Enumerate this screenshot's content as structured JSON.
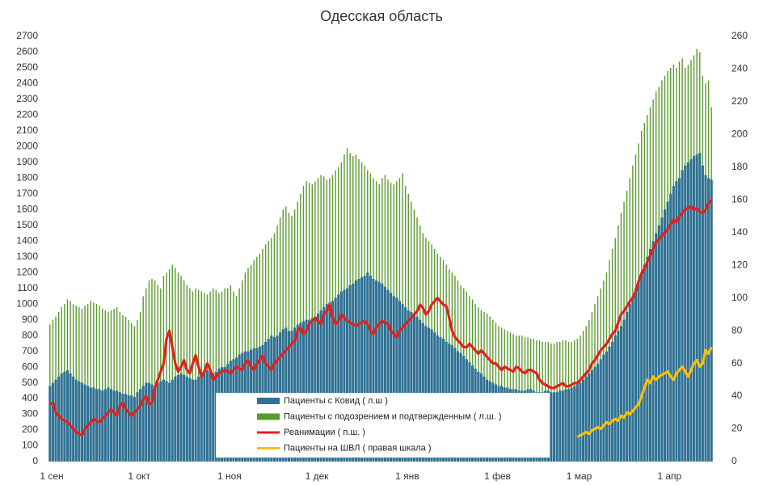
{
  "chart_data": {
    "type": "combo",
    "title": "Одесская область",
    "categories": [
      "1 сен",
      null,
      null,
      null,
      null,
      null,
      null,
      null,
      null,
      null,
      null,
      null,
      null,
      null,
      null,
      null,
      null,
      null,
      null,
      null,
      null,
      null,
      null,
      null,
      null,
      null,
      null,
      null,
      null,
      null,
      "1 окт",
      null,
      null,
      null,
      null,
      null,
      null,
      null,
      null,
      null,
      null,
      null,
      null,
      null,
      null,
      null,
      null,
      null,
      null,
      null,
      null,
      null,
      null,
      null,
      null,
      null,
      null,
      null,
      null,
      null,
      null,
      "1 ноя",
      null,
      null,
      null,
      null,
      null,
      null,
      null,
      null,
      null,
      null,
      null,
      null,
      null,
      null,
      null,
      null,
      null,
      null,
      null,
      null,
      null,
      null,
      null,
      null,
      null,
      null,
      null,
      null,
      null,
      "1 дек",
      null,
      null,
      null,
      null,
      null,
      null,
      null,
      null,
      null,
      null,
      null,
      null,
      null,
      null,
      null,
      null,
      null,
      null,
      null,
      null,
      null,
      null,
      null,
      null,
      null,
      null,
      null,
      null,
      null,
      null,
      "1 янв",
      null,
      null,
      null,
      null,
      null,
      null,
      null,
      null,
      null,
      null,
      null,
      null,
      null,
      null,
      null,
      null,
      null,
      null,
      null,
      null,
      null,
      null,
      null,
      null,
      null,
      null,
      null,
      null,
      null,
      null,
      "1 фев",
      null,
      null,
      null,
      null,
      null,
      null,
      null,
      null,
      null,
      null,
      null,
      null,
      null,
      null,
      null,
      null,
      null,
      null,
      null,
      null,
      null,
      null,
      null,
      null,
      null,
      null,
      null,
      "1 мар",
      null,
      null,
      null,
      null,
      null,
      null,
      null,
      null,
      null,
      null,
      null,
      null,
      null,
      null,
      null,
      null,
      null,
      null,
      null,
      null,
      null,
      null,
      null,
      null,
      null,
      null,
      null,
      null,
      null,
      null,
      "1 апр",
      null,
      null,
      null,
      null,
      null,
      null,
      null,
      null,
      null,
      null,
      null,
      null,
      null,
      null,
      null
    ],
    "series": [
      {
        "name": "Пациенты с подозрением и подтвержденным ( л.ш. )",
        "kind": "bar",
        "color": "#5a9a2e",
        "values": [
          870,
          900,
          920,
          950,
          980,
          1000,
          1030,
          1020,
          1000,
          990,
          980,
          970,
          990,
          1000,
          1020,
          1010,
          1000,
          990,
          970,
          960,
          950,
          960,
          970,
          980,
          950,
          930,
          920,
          900,
          880,
          860,
          900,
          950,
          1050,
          1100,
          1150,
          1160,
          1150,
          1120,
          1100,
          1180,
          1200,
          1220,
          1250,
          1230,
          1200,
          1180,
          1150,
          1120,
          1100,
          1080,
          1100,
          1090,
          1080,
          1070,
          1060,
          1080,
          1100,
          1090,
          1070,
          1080,
          1100,
          1100,
          1120,
          1080,
          1050,
          1100,
          1150,
          1200,
          1230,
          1250,
          1280,
          1300,
          1320,
          1350,
          1380,
          1400,
          1420,
          1450,
          1500,
          1550,
          1600,
          1620,
          1580,
          1560,
          1600,
          1650,
          1700,
          1750,
          1780,
          1770,
          1760,
          1780,
          1800,
          1820,
          1810,
          1790,
          1800,
          1820,
          1850,
          1870,
          1900,
          1950,
          1990,
          1960,
          1940,
          1950,
          1920,
          1900,
          1880,
          1850,
          1830,
          1800,
          1780,
          1760,
          1800,
          1820,
          1790,
          1770,
          1760,
          1780,
          1800,
          1830,
          1750,
          1700,
          1650,
          1600,
          1550,
          1500,
          1450,
          1420,
          1400,
          1380,
          1350,
          1320,
          1300,
          1280,
          1250,
          1220,
          1200,
          1180,
          1150,
          1120,
          1100,
          1080,
          1050,
          1030,
          1000,
          980,
          960,
          950,
          940,
          920,
          900,
          880,
          860,
          850,
          840,
          830,
          820,
          810,
          800,
          800,
          800,
          790,
          790,
          780,
          780,
          770,
          770,
          760,
          760,
          760,
          750,
          750,
          760,
          760,
          770,
          770,
          760,
          760,
          770,
          780,
          800,
          830,
          860,
          900,
          950,
          1000,
          1050,
          1100,
          1150,
          1200,
          1280,
          1350,
          1420,
          1500,
          1580,
          1650,
          1720,
          1800,
          1880,
          1950,
          2020,
          2100,
          2150,
          2200,
          2250,
          2300,
          2350,
          2380,
          2420,
          2450,
          2480,
          2500,
          2520,
          2500,
          2540,
          2560,
          2500,
          2520,
          2550,
          2580,
          2620,
          2600,
          2450,
          2400,
          2420,
          2250
        ]
      },
      {
        "name": "Пациенты с Ковид ( л.ш )",
        "kind": "bar",
        "color": "#2f7193",
        "values": [
          480,
          500,
          520,
          540,
          560,
          570,
          580,
          560,
          540,
          520,
          510,
          500,
          490,
          480,
          470,
          470,
          460,
          460,
          450,
          460,
          470,
          460,
          450,
          450,
          440,
          430,
          430,
          420,
          420,
          410,
          440,
          460,
          480,
          500,
          500,
          490,
          480,
          500,
          510,
          520,
          510,
          500,
          520,
          540,
          550,
          560,
          550,
          540,
          530,
          520,
          520,
          540,
          560,
          580,
          580,
          570,
          560,
          570,
          590,
          600,
          600,
          620,
          640,
          650,
          660,
          680,
          690,
          700,
          700,
          710,
          720,
          720,
          730,
          740,
          760,
          780,
          800,
          790,
          800,
          820,
          840,
          850,
          830,
          830,
          850,
          870,
          880,
          890,
          900,
          900,
          910,
          920,
          940,
          960,
          980,
          1000,
          1010,
          1020,
          1040,
          1060,
          1080,
          1090,
          1100,
          1120,
          1130,
          1150,
          1160,
          1170,
          1180,
          1200,
          1180,
          1160,
          1150,
          1140,
          1130,
          1110,
          1090,
          1070,
          1050,
          1040,
          1020,
          1000,
          980,
          960,
          950,
          940,
          920,
          900,
          880,
          860,
          850,
          840,
          820,
          800,
          790,
          780,
          760,
          750,
          740,
          720,
          700,
          690,
          670,
          650,
          630,
          610,
          590,
          570,
          560,
          540,
          520,
          510,
          500,
          490,
          480,
          480,
          470,
          470,
          460,
          460,
          460,
          450,
          450,
          450,
          460,
          460,
          450,
          440,
          440,
          440,
          450,
          450,
          440,
          440,
          440,
          450,
          450,
          460,
          460,
          470,
          480,
          490,
          500,
          520,
          540,
          560,
          580,
          600,
          620,
          650,
          680,
          700,
          730,
          760,
          800,
          830,
          860,
          900,
          950,
          1000,
          1050,
          1100,
          1150,
          1200,
          1250,
          1300,
          1350,
          1400,
          1450,
          1500,
          1550,
          1600,
          1650,
          1700,
          1750,
          1780,
          1800,
          1850,
          1880,
          1900,
          1920,
          1940,
          1950,
          1960,
          1880,
          1820,
          1800,
          1790
        ]
      },
      {
        "name": "Реанимации ( п.ш. )",
        "kind": "line",
        "axis": "y2",
        "color": "#e3201b",
        "values": [
          35,
          36,
          30,
          28,
          26,
          25,
          24,
          22,
          20,
          18,
          17,
          16,
          20,
          22,
          24,
          26,
          25,
          24,
          26,
          28,
          30,
          32,
          30,
          28,
          34,
          36,
          32,
          30,
          28,
          30,
          32,
          34,
          38,
          40,
          35,
          36,
          45,
          50,
          55,
          60,
          75,
          80,
          70,
          60,
          55,
          58,
          62,
          56,
          54,
          60,
          65,
          58,
          52,
          55,
          60,
          56,
          50,
          52,
          54,
          55,
          56,
          55,
          54,
          56,
          58,
          57,
          56,
          60,
          62,
          58,
          56,
          60,
          62,
          65,
          60,
          58,
          56,
          60,
          62,
          64,
          66,
          68,
          70,
          72,
          74,
          80,
          82,
          78,
          80,
          84,
          86,
          88,
          86,
          84,
          90,
          92,
          96,
          88,
          84,
          86,
          90,
          88,
          86,
          85,
          84,
          83,
          84,
          85,
          86,
          84,
          80,
          78,
          82,
          84,
          86,
          85,
          84,
          80,
          78,
          76,
          80,
          82,
          84,
          86,
          88,
          90,
          92,
          96,
          94,
          90,
          92,
          96,
          98,
          100,
          98,
          96,
          95,
          88,
          80,
          76,
          74,
          72,
          70,
          70,
          72,
          70,
          68,
          66,
          68,
          66,
          64,
          62,
          60,
          60,
          58,
          56,
          58,
          57,
          56,
          55,
          58,
          57,
          55,
          54,
          56,
          56,
          55,
          54,
          50,
          48,
          47,
          46,
          45,
          45,
          46,
          47,
          48,
          46,
          46,
          47,
          48,
          48,
          50,
          52,
          54,
          56,
          60,
          62,
          65,
          68,
          70,
          72,
          75,
          78,
          80,
          85,
          90,
          92,
          95,
          98,
          100,
          104,
          110,
          115,
          118,
          122,
          126,
          130,
          134,
          136,
          138,
          140,
          142,
          145,
          148,
          146,
          150,
          152,
          154,
          155,
          156,
          154,
          155,
          153,
          152,
          154,
          158,
          160
        ]
      },
      {
        "name": "Пациенты на ШВЛ ( правая шкала )",
        "kind": "line",
        "axis": "y2",
        "color": "#ffc000",
        "values": [
          null,
          null,
          null,
          null,
          null,
          null,
          null,
          null,
          null,
          null,
          null,
          null,
          null,
          null,
          null,
          null,
          null,
          null,
          null,
          null,
          null,
          null,
          null,
          null,
          null,
          null,
          null,
          null,
          null,
          null,
          null,
          null,
          null,
          null,
          null,
          null,
          null,
          null,
          null,
          null,
          null,
          null,
          null,
          null,
          null,
          null,
          null,
          null,
          null,
          null,
          null,
          null,
          null,
          null,
          null,
          null,
          null,
          null,
          null,
          null,
          null,
          null,
          null,
          null,
          null,
          null,
          null,
          null,
          null,
          null,
          null,
          null,
          null,
          null,
          null,
          null,
          null,
          null,
          null,
          null,
          null,
          null,
          null,
          null,
          null,
          null,
          null,
          null,
          null,
          null,
          null,
          null,
          null,
          null,
          null,
          null,
          null,
          null,
          null,
          null,
          null,
          null,
          null,
          null,
          null,
          null,
          null,
          null,
          null,
          null,
          null,
          null,
          null,
          null,
          null,
          null,
          null,
          null,
          null,
          null,
          null,
          null,
          null,
          null,
          null,
          null,
          null,
          null,
          null,
          null,
          null,
          null,
          null,
          null,
          null,
          null,
          null,
          null,
          null,
          null,
          null,
          null,
          null,
          null,
          null,
          null,
          null,
          null,
          null,
          null,
          null,
          null,
          null,
          null,
          null,
          null,
          null,
          null,
          null,
          null,
          null,
          null,
          null,
          null,
          null,
          null,
          null,
          null,
          null,
          null,
          null,
          null,
          null,
          null,
          null,
          null,
          null,
          null,
          null,
          null,
          null,
          15,
          16,
          17,
          18,
          17,
          19,
          20,
          21,
          20,
          22,
          24,
          23,
          25,
          26,
          25,
          28,
          27,
          30,
          29,
          31,
          33,
          35,
          40,
          45,
          50,
          48,
          52,
          50,
          52,
          53,
          54,
          55,
          52,
          50,
          54,
          56,
          58,
          55,
          52,
          56,
          60,
          62,
          58,
          60,
          68,
          66,
          70
        ]
      }
    ],
    "ylim": [
      0,
      2700
    ],
    "yticks": [
      0,
      100,
      200,
      300,
      400,
      500,
      600,
      700,
      800,
      900,
      1000,
      1100,
      1200,
      1300,
      1400,
      1500,
      1600,
      1700,
      1800,
      1900,
      2000,
      2100,
      2200,
      2300,
      2400,
      2500,
      2600,
      2700
    ],
    "y2lim": [
      0,
      260
    ],
    "y2ticks": [
      0,
      20,
      40,
      60,
      80,
      100,
      120,
      140,
      160,
      180,
      200,
      220,
      240,
      260
    ]
  }
}
